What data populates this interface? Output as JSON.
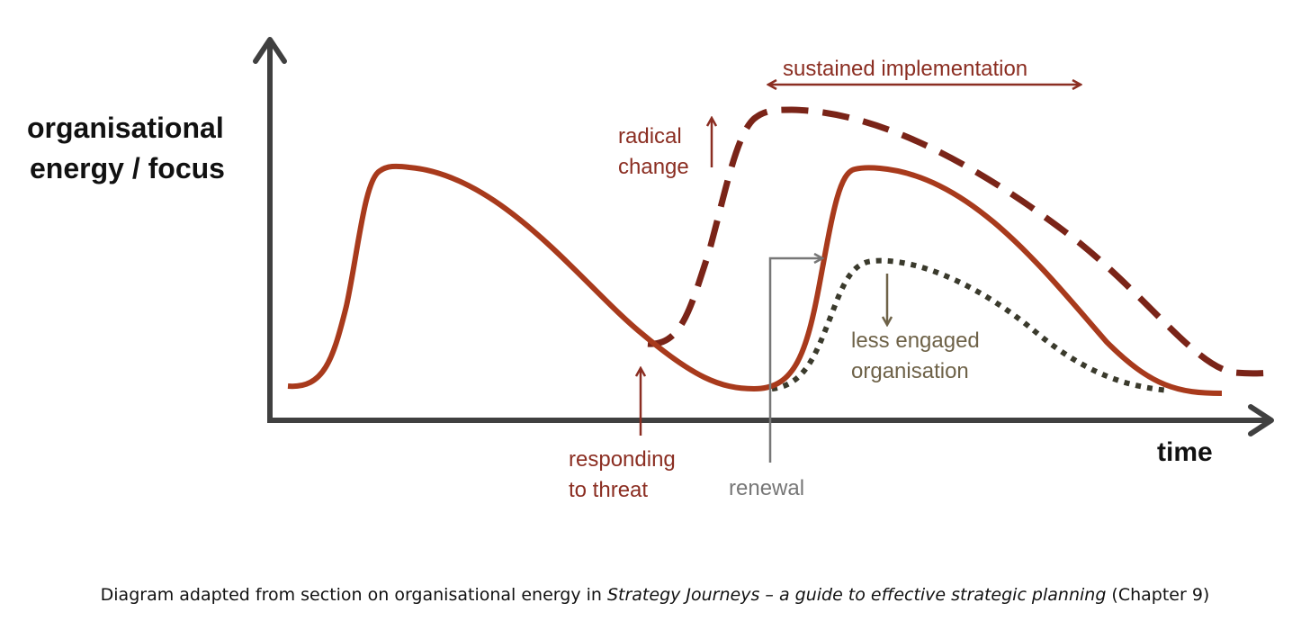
{
  "axes": {
    "y_label_line1": "organisational",
    "y_label_line2": "energy / focus",
    "x_label": "time"
  },
  "annotations": {
    "sustained_implementation": "sustained implementation",
    "radical_change_line1": "radical",
    "radical_change_line2": "change",
    "less_engaged_line1": "less engaged",
    "less_engaged_line2": "organisation",
    "responding_line1": "responding",
    "responding_line2": "to threat",
    "renewal": "renewal"
  },
  "caption": {
    "before": "Diagram adapted from section on organisational energy in ",
    "book_title": "Strategy Journeys – a guide to effective strategic planning",
    "after": " (Chapter 9)"
  },
  "colors": {
    "main_curve": "#a83a1c",
    "dashed_curve": "#7a2418",
    "dotted_curve": "#3a3a2c",
    "axis": "#404040",
    "annotation_red": "#8b2e22",
    "annotation_olive": "#6e6248",
    "annotation_gray": "#777777"
  }
}
